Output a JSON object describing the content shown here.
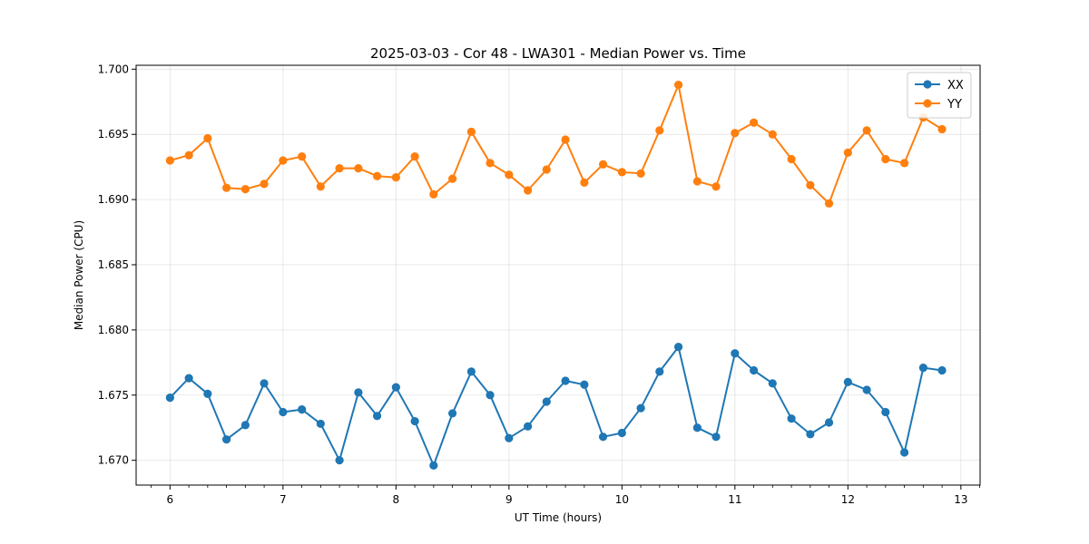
{
  "chart_data": {
    "type": "line",
    "title": "2025-03-03 - Cor 48 - LWA301 - Median Power vs. Time",
    "xlabel": "UT Time (hours)",
    "ylabel": "Median Power (CPU)",
    "xlim": [
      5.7,
      13.17
    ],
    "ylim": [
      1.6681,
      1.7003
    ],
    "xticks": [
      6,
      7,
      8,
      9,
      10,
      11,
      12,
      13
    ],
    "yticks": [
      1.67,
      1.675,
      1.68,
      1.685,
      1.69,
      1.695,
      1.7
    ],
    "ytick_labels": [
      "1.670",
      "1.675",
      "1.680",
      "1.685",
      "1.690",
      "1.695",
      "1.700"
    ],
    "grid": true,
    "legend_position": "top-right",
    "x": [
      6.0,
      6.167,
      6.333,
      6.5,
      6.667,
      6.833,
      7.0,
      7.167,
      7.333,
      7.5,
      7.667,
      7.833,
      8.0,
      8.167,
      8.333,
      8.5,
      8.667,
      8.833,
      9.0,
      9.167,
      9.333,
      9.5,
      9.667,
      9.833,
      10.0,
      10.167,
      10.333,
      10.5,
      10.667,
      10.833,
      11.0,
      11.167,
      11.333,
      11.5,
      11.667,
      11.833,
      12.0,
      12.167,
      12.333,
      12.5,
      12.667,
      12.833
    ],
    "series": [
      {
        "name": "XX",
        "color": "#1f77b4",
        "values": [
          1.6748,
          1.6763,
          1.6751,
          1.6716,
          1.6727,
          1.6759,
          1.6737,
          1.6739,
          1.6728,
          1.67,
          1.6752,
          1.6734,
          1.6756,
          1.673,
          1.6696,
          1.6736,
          1.6768,
          1.675,
          1.6717,
          1.6726,
          1.6745,
          1.6761,
          1.6758,
          1.6718,
          1.6721,
          1.674,
          1.6768,
          1.6787,
          1.6725,
          1.6718,
          1.6782,
          1.6769,
          1.6759,
          1.6732,
          1.672,
          1.6729,
          1.676,
          1.6754,
          1.6737,
          1.6706,
          1.6771,
          1.6769
        ]
      },
      {
        "name": "YY",
        "color": "#ff7f0e",
        "values": [
          1.693,
          1.6934,
          1.6947,
          1.6909,
          1.6908,
          1.6912,
          1.693,
          1.6933,
          1.691,
          1.6924,
          1.6924,
          1.6918,
          1.6917,
          1.6933,
          1.6904,
          1.6916,
          1.6952,
          1.6928,
          1.6919,
          1.6907,
          1.6923,
          1.6946,
          1.6913,
          1.6927,
          1.6921,
          1.692,
          1.6953,
          1.6988,
          1.6914,
          1.691,
          1.6951,
          1.6959,
          1.695,
          1.6931,
          1.6911,
          1.6897,
          1.6936,
          1.6953,
          1.6931,
          1.6928,
          1.6963,
          1.6954
        ]
      }
    ]
  }
}
